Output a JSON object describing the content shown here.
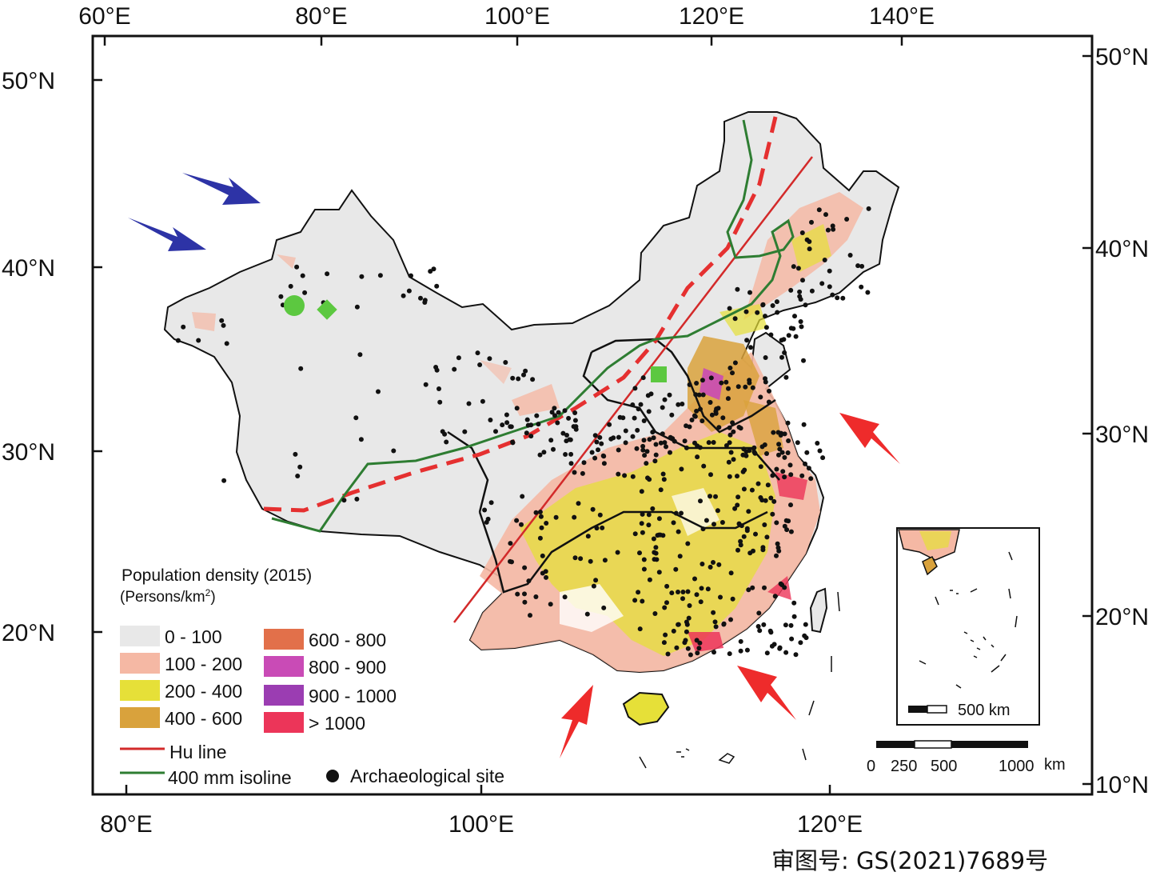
{
  "axes": {
    "top_lon_ticks": [
      "60°E",
      "80°E",
      "100°E",
      "120°E",
      "140°E"
    ],
    "bottom_lon_ticks": [
      "80°E",
      "100°E",
      "120°E"
    ],
    "left_lat_ticks": [
      "50°N",
      "40°N",
      "30°N",
      "20°N"
    ],
    "right_lat_ticks": [
      "50°N",
      "40°N",
      "30°N",
      "20°N",
      "10°N"
    ]
  },
  "legend": {
    "title": "Population density (2015)",
    "unit_prefix": "(Persons/km",
    "unit_sup": "2",
    "unit_suffix": ")",
    "classes": [
      {
        "label": "0 - 100",
        "color": "#e8e8e8"
      },
      {
        "label": "100 - 200",
        "color": "#f5b8a4"
      },
      {
        "label": "200 - 400",
        "color": "#e6e038"
      },
      {
        "label": "400 - 600",
        "color": "#d9a23c"
      },
      {
        "label": "600 - 800",
        "color": "#e2704a"
      },
      {
        "label": "800 - 900",
        "color": "#c94bb6"
      },
      {
        "label": "900 - 1000",
        "color": "#9b3db2"
      },
      {
        "label": "> 1000",
        "color": "#ec3559"
      }
    ],
    "hu_line_label": "Hu line",
    "hu_line_color": "#d32a2a",
    "isoline_label": "400 mm isoline",
    "isoline_color": "#2e7d32",
    "site_label": "Archaeological site"
  },
  "scale_bar": {
    "labels": [
      "0",
      "250",
      "500",
      "1000"
    ],
    "unit": "km"
  },
  "inset": {
    "scale_label": "500 km"
  },
  "markers": {
    "green_color": "#5cc840",
    "blue_arrow_color": "#2d33a6",
    "red_arrow_color": "#ee2b2b"
  },
  "approval_number": "审图号: GS(2021)7689号"
}
